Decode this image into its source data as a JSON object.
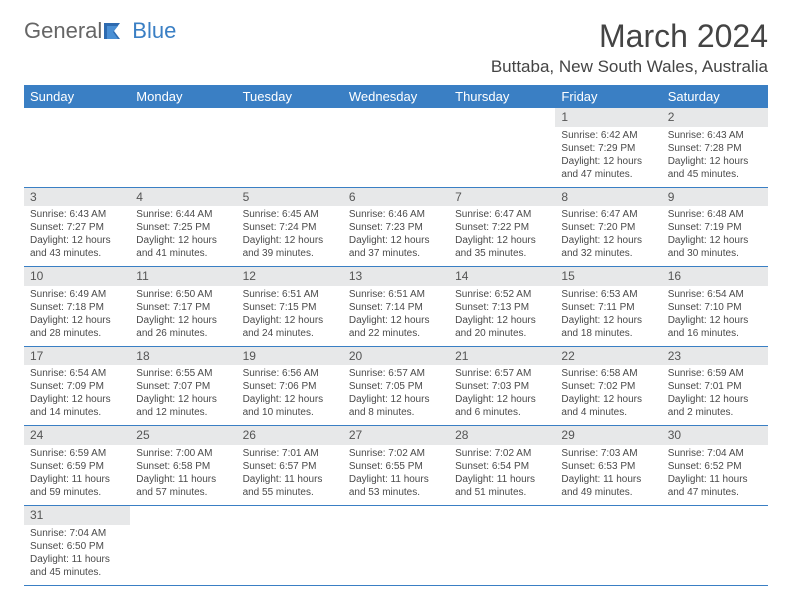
{
  "logo": {
    "part1": "General",
    "part2": "Blue"
  },
  "title": "March 2024",
  "location": "Buttaba, New South Wales, Australia",
  "colors": {
    "header_bg": "#3a7fc4",
    "header_text": "#ffffff",
    "daynum_bg": "#e7e8e9",
    "row_border": "#3a7fc4",
    "text": "#4a4a4a"
  },
  "weekdays": [
    "Sunday",
    "Monday",
    "Tuesday",
    "Wednesday",
    "Thursday",
    "Friday",
    "Saturday"
  ],
  "weeks": [
    [
      null,
      null,
      null,
      null,
      null,
      {
        "n": "1",
        "sr": "Sunrise: 6:42 AM",
        "ss": "Sunset: 7:29 PM",
        "d1": "Daylight: 12 hours",
        "d2": "and 47 minutes."
      },
      {
        "n": "2",
        "sr": "Sunrise: 6:43 AM",
        "ss": "Sunset: 7:28 PM",
        "d1": "Daylight: 12 hours",
        "d2": "and 45 minutes."
      }
    ],
    [
      {
        "n": "3",
        "sr": "Sunrise: 6:43 AM",
        "ss": "Sunset: 7:27 PM",
        "d1": "Daylight: 12 hours",
        "d2": "and 43 minutes."
      },
      {
        "n": "4",
        "sr": "Sunrise: 6:44 AM",
        "ss": "Sunset: 7:25 PM",
        "d1": "Daylight: 12 hours",
        "d2": "and 41 minutes."
      },
      {
        "n": "5",
        "sr": "Sunrise: 6:45 AM",
        "ss": "Sunset: 7:24 PM",
        "d1": "Daylight: 12 hours",
        "d2": "and 39 minutes."
      },
      {
        "n": "6",
        "sr": "Sunrise: 6:46 AM",
        "ss": "Sunset: 7:23 PM",
        "d1": "Daylight: 12 hours",
        "d2": "and 37 minutes."
      },
      {
        "n": "7",
        "sr": "Sunrise: 6:47 AM",
        "ss": "Sunset: 7:22 PM",
        "d1": "Daylight: 12 hours",
        "d2": "and 35 minutes."
      },
      {
        "n": "8",
        "sr": "Sunrise: 6:47 AM",
        "ss": "Sunset: 7:20 PM",
        "d1": "Daylight: 12 hours",
        "d2": "and 32 minutes."
      },
      {
        "n": "9",
        "sr": "Sunrise: 6:48 AM",
        "ss": "Sunset: 7:19 PM",
        "d1": "Daylight: 12 hours",
        "d2": "and 30 minutes."
      }
    ],
    [
      {
        "n": "10",
        "sr": "Sunrise: 6:49 AM",
        "ss": "Sunset: 7:18 PM",
        "d1": "Daylight: 12 hours",
        "d2": "and 28 minutes."
      },
      {
        "n": "11",
        "sr": "Sunrise: 6:50 AM",
        "ss": "Sunset: 7:17 PM",
        "d1": "Daylight: 12 hours",
        "d2": "and 26 minutes."
      },
      {
        "n": "12",
        "sr": "Sunrise: 6:51 AM",
        "ss": "Sunset: 7:15 PM",
        "d1": "Daylight: 12 hours",
        "d2": "and 24 minutes."
      },
      {
        "n": "13",
        "sr": "Sunrise: 6:51 AM",
        "ss": "Sunset: 7:14 PM",
        "d1": "Daylight: 12 hours",
        "d2": "and 22 minutes."
      },
      {
        "n": "14",
        "sr": "Sunrise: 6:52 AM",
        "ss": "Sunset: 7:13 PM",
        "d1": "Daylight: 12 hours",
        "d2": "and 20 minutes."
      },
      {
        "n": "15",
        "sr": "Sunrise: 6:53 AM",
        "ss": "Sunset: 7:11 PM",
        "d1": "Daylight: 12 hours",
        "d2": "and 18 minutes."
      },
      {
        "n": "16",
        "sr": "Sunrise: 6:54 AM",
        "ss": "Sunset: 7:10 PM",
        "d1": "Daylight: 12 hours",
        "d2": "and 16 minutes."
      }
    ],
    [
      {
        "n": "17",
        "sr": "Sunrise: 6:54 AM",
        "ss": "Sunset: 7:09 PM",
        "d1": "Daylight: 12 hours",
        "d2": "and 14 minutes."
      },
      {
        "n": "18",
        "sr": "Sunrise: 6:55 AM",
        "ss": "Sunset: 7:07 PM",
        "d1": "Daylight: 12 hours",
        "d2": "and 12 minutes."
      },
      {
        "n": "19",
        "sr": "Sunrise: 6:56 AM",
        "ss": "Sunset: 7:06 PM",
        "d1": "Daylight: 12 hours",
        "d2": "and 10 minutes."
      },
      {
        "n": "20",
        "sr": "Sunrise: 6:57 AM",
        "ss": "Sunset: 7:05 PM",
        "d1": "Daylight: 12 hours",
        "d2": "and 8 minutes."
      },
      {
        "n": "21",
        "sr": "Sunrise: 6:57 AM",
        "ss": "Sunset: 7:03 PM",
        "d1": "Daylight: 12 hours",
        "d2": "and 6 minutes."
      },
      {
        "n": "22",
        "sr": "Sunrise: 6:58 AM",
        "ss": "Sunset: 7:02 PM",
        "d1": "Daylight: 12 hours",
        "d2": "and 4 minutes."
      },
      {
        "n": "23",
        "sr": "Sunrise: 6:59 AM",
        "ss": "Sunset: 7:01 PM",
        "d1": "Daylight: 12 hours",
        "d2": "and 2 minutes."
      }
    ],
    [
      {
        "n": "24",
        "sr": "Sunrise: 6:59 AM",
        "ss": "Sunset: 6:59 PM",
        "d1": "Daylight: 11 hours",
        "d2": "and 59 minutes."
      },
      {
        "n": "25",
        "sr": "Sunrise: 7:00 AM",
        "ss": "Sunset: 6:58 PM",
        "d1": "Daylight: 11 hours",
        "d2": "and 57 minutes."
      },
      {
        "n": "26",
        "sr": "Sunrise: 7:01 AM",
        "ss": "Sunset: 6:57 PM",
        "d1": "Daylight: 11 hours",
        "d2": "and 55 minutes."
      },
      {
        "n": "27",
        "sr": "Sunrise: 7:02 AM",
        "ss": "Sunset: 6:55 PM",
        "d1": "Daylight: 11 hours",
        "d2": "and 53 minutes."
      },
      {
        "n": "28",
        "sr": "Sunrise: 7:02 AM",
        "ss": "Sunset: 6:54 PM",
        "d1": "Daylight: 11 hours",
        "d2": "and 51 minutes."
      },
      {
        "n": "29",
        "sr": "Sunrise: 7:03 AM",
        "ss": "Sunset: 6:53 PM",
        "d1": "Daylight: 11 hours",
        "d2": "and 49 minutes."
      },
      {
        "n": "30",
        "sr": "Sunrise: 7:04 AM",
        "ss": "Sunset: 6:52 PM",
        "d1": "Daylight: 11 hours",
        "d2": "and 47 minutes."
      }
    ],
    [
      {
        "n": "31",
        "sr": "Sunrise: 7:04 AM",
        "ss": "Sunset: 6:50 PM",
        "d1": "Daylight: 11 hours",
        "d2": "and 45 minutes."
      },
      null,
      null,
      null,
      null,
      null,
      null
    ]
  ]
}
